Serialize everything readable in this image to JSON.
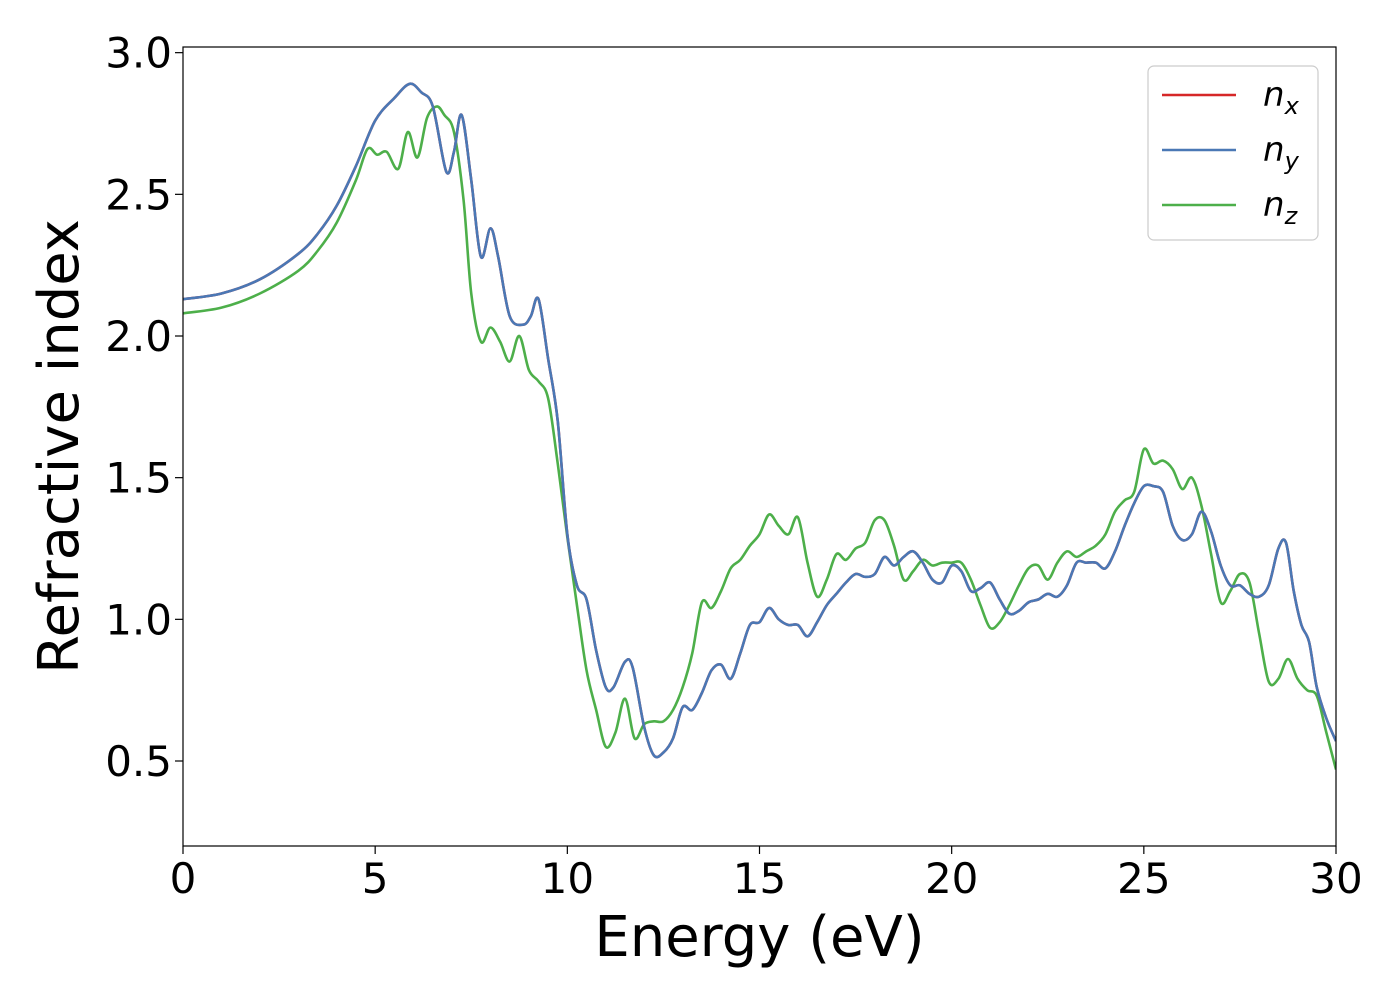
{
  "chart_data": {
    "type": "line",
    "xlabel": "Energy (eV)",
    "ylabel": "Refractive index",
    "xlim": [
      0,
      30
    ],
    "ylim": [
      0.2,
      3.02
    ],
    "xticks": [
      0,
      5,
      10,
      15,
      20,
      25,
      30
    ],
    "yticks": [
      0.5,
      1.0,
      1.5,
      2.0,
      2.5,
      3.0
    ],
    "xtick_labels": [
      "0",
      "5",
      "10",
      "15",
      "20",
      "25",
      "30"
    ],
    "ytick_labels": [
      "0.5",
      "1.0",
      "1.5",
      "2.0",
      "2.5",
      "3.0"
    ],
    "grid": false,
    "legend_position": "top-right",
    "series": [
      {
        "name": "n",
        "subscript": "x",
        "color": "#d62728",
        "x": [
          0,
          1,
          2,
          3,
          3.5,
          4,
          4.5,
          5,
          5.5,
          5.9,
          6.2,
          6.5,
          6.85,
          7.05,
          7.25,
          7.5,
          7.75,
          8.0,
          8.2,
          8.5,
          8.85,
          9.05,
          9.25,
          9.5,
          9.75,
          10.0,
          10.25,
          10.5,
          10.75,
          11.0,
          11.2,
          11.5,
          11.7,
          12.0,
          12.25,
          12.5,
          12.75,
          13.0,
          13.25,
          13.5,
          13.75,
          14.0,
          14.25,
          14.5,
          14.75,
          15.0,
          15.25,
          15.5,
          15.75,
          16.0,
          16.25,
          16.5,
          16.75,
          17.0,
          17.25,
          17.5,
          17.75,
          18.0,
          18.25,
          18.5,
          18.75,
          19.0,
          19.25,
          19.5,
          19.75,
          20.0,
          20.25,
          20.5,
          20.75,
          21.0,
          21.25,
          21.5,
          21.75,
          22.0,
          22.25,
          22.5,
          22.75,
          23.0,
          23.25,
          23.5,
          23.75,
          24.0,
          24.25,
          24.5,
          24.75,
          25.0,
          25.25,
          25.5,
          25.75,
          26.0,
          26.25,
          26.5,
          26.75,
          27.0,
          27.25,
          27.5,
          27.75,
          28.0,
          28.25,
          28.5,
          28.7,
          28.9,
          29.1,
          29.3,
          29.5,
          29.75,
          30.0
        ],
        "y": [
          2.13,
          2.15,
          2.2,
          2.29,
          2.36,
          2.46,
          2.6,
          2.76,
          2.84,
          2.89,
          2.86,
          2.81,
          2.58,
          2.65,
          2.78,
          2.55,
          2.28,
          2.38,
          2.28,
          2.07,
          2.04,
          2.07,
          2.13,
          1.92,
          1.7,
          1.3,
          1.12,
          1.07,
          0.89,
          0.76,
          0.76,
          0.85,
          0.83,
          0.62,
          0.52,
          0.53,
          0.58,
          0.69,
          0.68,
          0.74,
          0.82,
          0.84,
          0.79,
          0.88,
          0.98,
          0.99,
          1.04,
          1.0,
          0.98,
          0.98,
          0.94,
          0.99,
          1.05,
          1.09,
          1.13,
          1.16,
          1.15,
          1.16,
          1.22,
          1.19,
          1.22,
          1.24,
          1.2,
          1.14,
          1.13,
          1.19,
          1.17,
          1.1,
          1.11,
          1.13,
          1.07,
          1.02,
          1.03,
          1.06,
          1.07,
          1.09,
          1.08,
          1.12,
          1.2,
          1.2,
          1.2,
          1.18,
          1.24,
          1.33,
          1.41,
          1.47,
          1.47,
          1.45,
          1.33,
          1.28,
          1.3,
          1.38,
          1.31,
          1.19,
          1.12,
          1.12,
          1.09,
          1.08,
          1.12,
          1.25,
          1.27,
          1.1,
          0.98,
          0.92,
          0.76,
          0.65,
          0.57
        ]
      },
      {
        "name": "n",
        "subscript": "y",
        "color": "#4a78b5",
        "x": [
          0,
          1,
          2,
          3,
          3.5,
          4,
          4.5,
          5,
          5.5,
          5.9,
          6.2,
          6.5,
          6.85,
          7.05,
          7.25,
          7.5,
          7.75,
          8.0,
          8.2,
          8.5,
          8.85,
          9.05,
          9.25,
          9.5,
          9.75,
          10.0,
          10.25,
          10.5,
          10.75,
          11.0,
          11.2,
          11.5,
          11.7,
          12.0,
          12.25,
          12.5,
          12.75,
          13.0,
          13.25,
          13.5,
          13.75,
          14.0,
          14.25,
          14.5,
          14.75,
          15.0,
          15.25,
          15.5,
          15.75,
          16.0,
          16.25,
          16.5,
          16.75,
          17.0,
          17.25,
          17.5,
          17.75,
          18.0,
          18.25,
          18.5,
          18.75,
          19.0,
          19.25,
          19.5,
          19.75,
          20.0,
          20.25,
          20.5,
          20.75,
          21.0,
          21.25,
          21.5,
          21.75,
          22.0,
          22.25,
          22.5,
          22.75,
          23.0,
          23.25,
          23.5,
          23.75,
          24.0,
          24.25,
          24.5,
          24.75,
          25.0,
          25.25,
          25.5,
          25.75,
          26.0,
          26.25,
          26.5,
          26.75,
          27.0,
          27.25,
          27.5,
          27.75,
          28.0,
          28.25,
          28.5,
          28.7,
          28.9,
          29.1,
          29.3,
          29.5,
          29.75,
          30.0
        ],
        "y": [
          2.13,
          2.15,
          2.2,
          2.29,
          2.36,
          2.46,
          2.6,
          2.76,
          2.84,
          2.89,
          2.86,
          2.81,
          2.58,
          2.65,
          2.78,
          2.55,
          2.28,
          2.38,
          2.28,
          2.07,
          2.04,
          2.07,
          2.13,
          1.92,
          1.7,
          1.3,
          1.12,
          1.07,
          0.89,
          0.76,
          0.76,
          0.85,
          0.83,
          0.62,
          0.52,
          0.53,
          0.58,
          0.69,
          0.68,
          0.74,
          0.82,
          0.84,
          0.79,
          0.88,
          0.98,
          0.99,
          1.04,
          1.0,
          0.98,
          0.98,
          0.94,
          0.99,
          1.05,
          1.09,
          1.13,
          1.16,
          1.15,
          1.16,
          1.22,
          1.19,
          1.22,
          1.24,
          1.2,
          1.14,
          1.13,
          1.19,
          1.17,
          1.1,
          1.11,
          1.13,
          1.07,
          1.02,
          1.03,
          1.06,
          1.07,
          1.09,
          1.08,
          1.12,
          1.2,
          1.2,
          1.2,
          1.18,
          1.24,
          1.33,
          1.41,
          1.47,
          1.47,
          1.45,
          1.33,
          1.28,
          1.3,
          1.38,
          1.31,
          1.19,
          1.12,
          1.12,
          1.09,
          1.08,
          1.12,
          1.25,
          1.27,
          1.1,
          0.98,
          0.92,
          0.76,
          0.65,
          0.57
        ]
      },
      {
        "name": "n",
        "subscript": "z",
        "color": "#4daf4a",
        "x": [
          0,
          1,
          2,
          3,
          3.5,
          4,
          4.5,
          4.8,
          5.05,
          5.3,
          5.6,
          5.85,
          6.1,
          6.35,
          6.6,
          6.8,
          7.05,
          7.3,
          7.5,
          7.75,
          8.0,
          8.25,
          8.5,
          8.75,
          9.0,
          9.25,
          9.5,
          9.75,
          10.0,
          10.25,
          10.5,
          10.75,
          11.0,
          11.25,
          11.5,
          11.75,
          12.0,
          12.25,
          12.5,
          12.75,
          13.0,
          13.25,
          13.5,
          13.75,
          14.0,
          14.25,
          14.5,
          14.75,
          15.0,
          15.25,
          15.5,
          15.75,
          16.0,
          16.25,
          16.5,
          16.75,
          17.0,
          17.25,
          17.5,
          17.75,
          18.0,
          18.25,
          18.5,
          18.75,
          19.0,
          19.25,
          19.5,
          19.75,
          20.0,
          20.25,
          20.5,
          20.75,
          21.0,
          21.25,
          21.5,
          21.75,
          22.0,
          22.25,
          22.5,
          22.75,
          23.0,
          23.25,
          23.5,
          23.75,
          24.0,
          24.25,
          24.5,
          24.75,
          25.0,
          25.25,
          25.5,
          25.75,
          26.0,
          26.25,
          26.5,
          26.75,
          27.0,
          27.25,
          27.5,
          27.75,
          28.0,
          28.25,
          28.5,
          28.75,
          29.0,
          29.25,
          29.5,
          29.75,
          30.0
        ],
        "y": [
          2.08,
          2.1,
          2.15,
          2.23,
          2.3,
          2.4,
          2.55,
          2.66,
          2.64,
          2.65,
          2.59,
          2.72,
          2.63,
          2.77,
          2.81,
          2.78,
          2.72,
          2.48,
          2.15,
          1.98,
          2.03,
          1.98,
          1.91,
          2.0,
          1.88,
          1.84,
          1.78,
          1.55,
          1.29,
          1.05,
          0.82,
          0.68,
          0.55,
          0.6,
          0.72,
          0.58,
          0.63,
          0.64,
          0.64,
          0.68,
          0.76,
          0.88,
          1.06,
          1.04,
          1.1,
          1.18,
          1.21,
          1.26,
          1.3,
          1.37,
          1.33,
          1.3,
          1.36,
          1.2,
          1.08,
          1.14,
          1.23,
          1.21,
          1.25,
          1.27,
          1.35,
          1.35,
          1.26,
          1.14,
          1.17,
          1.21,
          1.19,
          1.2,
          1.2,
          1.2,
          1.14,
          1.05,
          0.97,
          0.99,
          1.05,
          1.12,
          1.18,
          1.19,
          1.14,
          1.2,
          1.24,
          1.22,
          1.24,
          1.26,
          1.3,
          1.38,
          1.42,
          1.45,
          1.6,
          1.55,
          1.56,
          1.53,
          1.46,
          1.5,
          1.4,
          1.23,
          1.06,
          1.1,
          1.16,
          1.13,
          0.95,
          0.78,
          0.79,
          0.86,
          0.79,
          0.75,
          0.73,
          0.6,
          0.47
        ]
      }
    ]
  }
}
